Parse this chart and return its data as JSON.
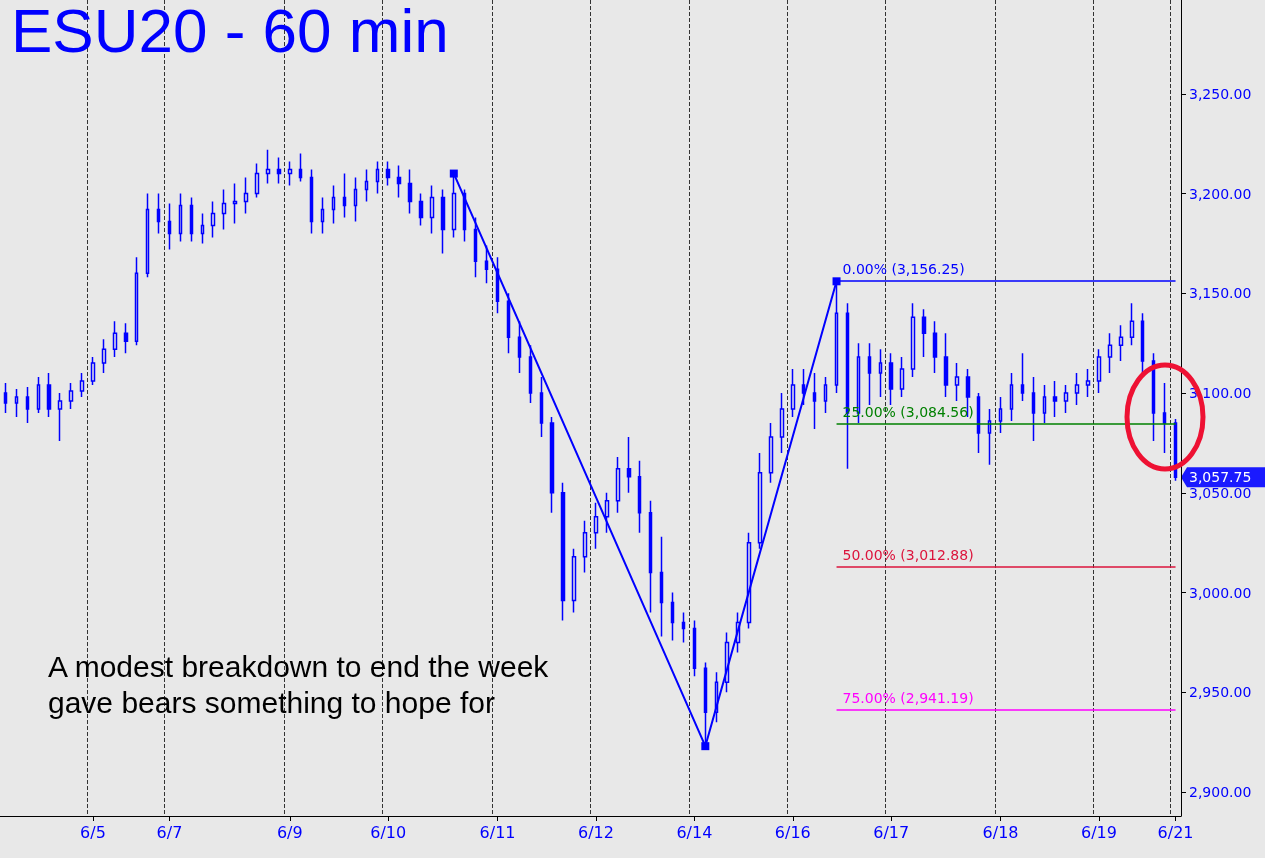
{
  "chart_data": {
    "type": "candlestick",
    "title": "ESU20 - 60 min",
    "categories": [
      null,
      null,
      null,
      null,
      null,
      null,
      null,
      null,
      "6/5",
      null,
      null,
      null,
      null,
      null,
      null,
      "6/7",
      null,
      null,
      null,
      null,
      null,
      null,
      null,
      null,
      null,
      null,
      "6/9",
      null,
      null,
      null,
      null,
      null,
      null,
      null,
      null,
      "6/10",
      null,
      null,
      null,
      null,
      null,
      null,
      null,
      null,
      null,
      "6/11",
      null,
      null,
      null,
      null,
      null,
      null,
      null,
      null,
      "6/12",
      null,
      null,
      null,
      null,
      null,
      null,
      null,
      null,
      "6/14",
      null,
      null,
      null,
      null,
      null,
      null,
      null,
      null,
      "6/16",
      null,
      null,
      null,
      null,
      null,
      null,
      null,
      null,
      "6/17",
      null,
      null,
      null,
      null,
      null,
      null,
      null,
      null,
      null,
      "6/18",
      null,
      null,
      null,
      null,
      null,
      null,
      null,
      null,
      "6/19",
      null,
      null,
      null,
      null,
      null,
      null,
      "6/21"
    ],
    "series": [
      {
        "color": "#0000ff",
        "ohlc": [
          [
            3100,
            3105,
            3090,
            3095
          ],
          [
            3095,
            3102,
            3088,
            3098
          ],
          [
            3098,
            3103,
            3085,
            3092
          ],
          [
            3092,
            3108,
            3090,
            3104
          ],
          [
            3104,
            3110,
            3088,
            3092
          ],
          [
            3092,
            3100,
            3076,
            3096
          ],
          [
            3096,
            3105,
            3092,
            3101
          ],
          [
            3101,
            3110,
            3098,
            3106
          ],
          [
            3106,
            3118,
            3104,
            3115
          ],
          [
            3115,
            3127,
            3110,
            3122
          ],
          [
            3122,
            3136,
            3118,
            3130
          ],
          [
            3130,
            3135,
            3120,
            3126
          ],
          [
            3126,
            3168,
            3124,
            3160
          ],
          [
            3160,
            3200,
            3158,
            3192
          ],
          [
            3192,
            3200,
            3180,
            3186
          ],
          [
            3186,
            3195,
            3172,
            3180
          ],
          [
            3180,
            3200,
            3176,
            3194
          ],
          [
            3194,
            3198,
            3176,
            3180
          ],
          [
            3180,
            3190,
            3175,
            3184
          ],
          [
            3184,
            3196,
            3178,
            3190
          ],
          [
            3190,
            3202,
            3182,
            3195
          ],
          [
            3195,
            3205,
            3185,
            3196
          ],
          [
            3196,
            3208,
            3190,
            3200
          ],
          [
            3200,
            3215,
            3198,
            3210
          ],
          [
            3210,
            3222,
            3205,
            3212
          ],
          [
            3212,
            3218,
            3205,
            3210
          ],
          [
            3210,
            3216,
            3204,
            3212
          ],
          [
            3212,
            3220,
            3206,
            3208
          ],
          [
            3208,
            3212,
            3180,
            3186
          ],
          [
            3186,
            3198,
            3180,
            3192
          ],
          [
            3192,
            3204,
            3185,
            3198
          ],
          [
            3198,
            3210,
            3188,
            3194
          ],
          [
            3194,
            3208,
            3186,
            3202
          ],
          [
            3202,
            3212,
            3196,
            3206
          ],
          [
            3206,
            3216,
            3200,
            3212
          ],
          [
            3212,
            3216,
            3204,
            3208
          ],
          [
            3208,
            3214,
            3198,
            3205
          ],
          [
            3205,
            3212,
            3190,
            3196
          ],
          [
            3196,
            3200,
            3184,
            3188
          ],
          [
            3188,
            3204,
            3180,
            3198
          ],
          [
            3198,
            3202,
            3170,
            3182
          ],
          [
            3182,
            3210,
            3178,
            3200
          ],
          [
            3200,
            3202,
            3176,
            3182
          ],
          [
            3182,
            3188,
            3158,
            3166
          ],
          [
            3166,
            3174,
            3155,
            3162
          ],
          [
            3162,
            3168,
            3140,
            3146
          ],
          [
            3146,
            3150,
            3120,
            3128
          ],
          [
            3128,
            3136,
            3110,
            3118
          ],
          [
            3118,
            3124,
            3095,
            3100
          ],
          [
            3100,
            3108,
            3078,
            3085
          ],
          [
            3085,
            3088,
            3040,
            3050
          ],
          [
            3050,
            3055,
            2986,
            2996
          ],
          [
            2996,
            3022,
            2990,
            3018
          ],
          [
            3018,
            3036,
            3010,
            3030
          ],
          [
            3030,
            3045,
            3022,
            3038
          ],
          [
            3038,
            3050,
            3030,
            3046
          ],
          [
            3046,
            3068,
            3040,
            3062
          ],
          [
            3062,
            3078,
            3050,
            3058
          ],
          [
            3058,
            3066,
            3030,
            3040
          ],
          [
            3040,
            3046,
            2990,
            3010
          ],
          [
            3010,
            3028,
            2978,
            2995
          ],
          [
            2995,
            3000,
            2976,
            2985
          ],
          [
            2985,
            2990,
            2975,
            2982
          ],
          [
            2982,
            2986,
            2958,
            2962
          ],
          [
            2962,
            2965,
            2923,
            2940
          ],
          [
            2940,
            2960,
            2935,
            2955
          ],
          [
            2955,
            2980,
            2950,
            2975
          ],
          [
            2975,
            2990,
            2970,
            2985
          ],
          [
            2985,
            3030,
            2982,
            3025
          ],
          [
            3025,
            3070,
            3022,
            3060
          ],
          [
            3060,
            3085,
            3055,
            3078
          ],
          [
            3078,
            3100,
            3070,
            3092
          ],
          [
            3092,
            3112,
            3088,
            3104
          ],
          [
            3104,
            3112,
            3094,
            3100
          ],
          [
            3100,
            3110,
            3082,
            3096
          ],
          [
            3096,
            3108,
            3090,
            3104
          ],
          [
            3104,
            3156,
            3100,
            3140
          ],
          [
            3140,
            3145,
            3062,
            3090
          ],
          [
            3090,
            3125,
            3085,
            3118
          ],
          [
            3118,
            3125,
            3094,
            3110
          ],
          [
            3110,
            3122,
            3098,
            3115
          ],
          [
            3115,
            3120,
            3094,
            3102
          ],
          [
            3102,
            3118,
            3098,
            3112
          ],
          [
            3112,
            3145,
            3108,
            3138
          ],
          [
            3138,
            3142,
            3118,
            3130
          ],
          [
            3130,
            3136,
            3110,
            3118
          ],
          [
            3118,
            3130,
            3098,
            3104
          ],
          [
            3104,
            3115,
            3096,
            3108
          ],
          [
            3108,
            3112,
            3088,
            3098
          ],
          [
            3098,
            3100,
            3070,
            3080
          ],
          [
            3080,
            3092,
            3064,
            3086
          ],
          [
            3086,
            3098,
            3080,
            3092
          ],
          [
            3092,
            3110,
            3086,
            3104
          ],
          [
            3104,
            3120,
            3096,
            3100
          ],
          [
            3100,
            3108,
            3076,
            3090
          ],
          [
            3090,
            3104,
            3085,
            3098
          ],
          [
            3098,
            3106,
            3088,
            3096
          ],
          [
            3096,
            3104,
            3090,
            3100
          ],
          [
            3100,
            3110,
            3094,
            3104
          ],
          [
            3104,
            3112,
            3098,
            3106
          ],
          [
            3106,
            3122,
            3100,
            3118
          ],
          [
            3118,
            3130,
            3110,
            3124
          ],
          [
            3124,
            3134,
            3116,
            3128
          ],
          [
            3128,
            3145,
            3124,
            3136
          ],
          [
            3136,
            3140,
            3110,
            3116
          ],
          [
            3116,
            3120,
            3076,
            3090
          ],
          [
            3090,
            3105,
            3070,
            3085
          ],
          [
            3085,
            3087,
            3056,
            3057.75
          ]
        ]
      },
      {
        "type": "line",
        "color": "#0000ff",
        "marker": "square",
        "values": [
          null,
          null,
          null,
          null,
          null,
          null,
          null,
          null,
          null,
          null,
          null,
          null,
          null,
          null,
          null,
          null,
          null,
          null,
          null,
          null,
          null,
          null,
          null,
          null,
          null,
          null,
          null,
          null,
          null,
          null,
          null,
          null,
          null,
          null,
          null,
          null,
          null,
          null,
          null,
          null,
          null,
          3210,
          null,
          null,
          null,
          null,
          null,
          null,
          null,
          null,
          null,
          null,
          null,
          null,
          null,
          null,
          null,
          null,
          null,
          null,
          null,
          null,
          null,
          null,
          2923,
          null,
          null,
          null,
          null,
          null,
          null,
          null,
          null,
          null,
          null,
          null,
          3156,
          null,
          null,
          null,
          null,
          null,
          null,
          null,
          null,
          null,
          null,
          null,
          null,
          null,
          null,
          null,
          null,
          null,
          null,
          null,
          null,
          null,
          null,
          null,
          null,
          null,
          null,
          null,
          null,
          null,
          null,
          null
        ]
      }
    ],
    "ylim": [
      2888,
      3297
    ],
    "yticks": [
      {
        "value": 2900,
        "label": "2,900.00"
      },
      {
        "value": 2950,
        "label": "2,950.00"
      },
      {
        "value": 3000,
        "label": "3,000.00"
      },
      {
        "value": 3050,
        "label": "3,050.00"
      },
      {
        "value": 3100,
        "label": "3,100.00"
      },
      {
        "value": 3150,
        "label": "3,150.00"
      },
      {
        "value": 3200,
        "label": "3,200.00"
      },
      {
        "value": 3250,
        "label": "3,250.00"
      }
    ],
    "grid": "x",
    "ref_lines": [
      {
        "axis": "y",
        "value": 3156.25,
        "label": "0.00% (3,156.25)",
        "color": "#0000ff"
      },
      {
        "axis": "y",
        "value": 3084.56,
        "label": "25.00% (3,084.56)",
        "color": "#008000"
      },
      {
        "axis": "y",
        "value": 3012.88,
        "label": "50.00% (3,012.88)",
        "color": "#dc143c"
      },
      {
        "axis": "y",
        "value": 2941.19,
        "label": "75.00% (2,941.19)",
        "color": "#ff00ff"
      }
    ],
    "annotations": [
      "A modest breakdown to end the week\ngave bears something to hope for",
      "3,057.75"
    ]
  }
}
